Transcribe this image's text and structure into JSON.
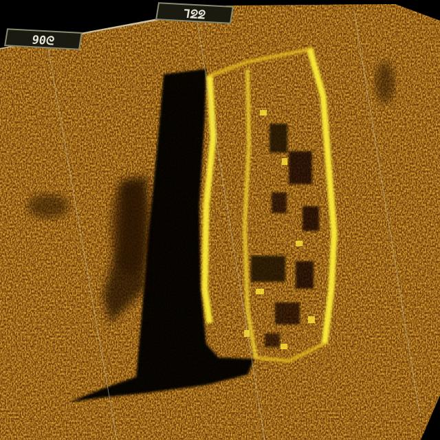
{
  "image": {
    "description_free": true,
    "palette": {
      "background": "#000000",
      "sonar_dark": "#3a1e00",
      "sonar_mid": "#a0560a",
      "sonar_bright": "#e0a020",
      "highlight": "#fff23a",
      "shadow": "#050200",
      "gridline": "#c8c8b0"
    }
  },
  "labels": {
    "left": "ᘐ06",
    "right": "ᘔᘔL"
  }
}
